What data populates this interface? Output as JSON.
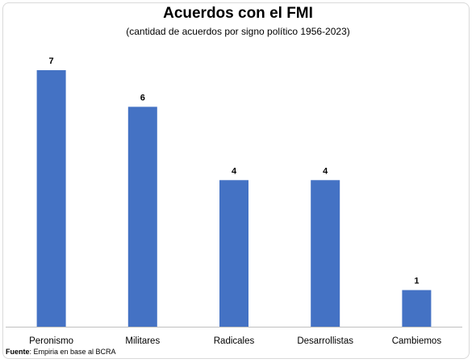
{
  "chart_data": {
    "type": "bar",
    "title": "Acuerdos con el FMI",
    "subtitle": "(cantidad de acuerdos por signo político 1956-2023)",
    "categories": [
      "Peronismo",
      "Militares",
      "Radicales",
      "Desarrollistas",
      "Cambiemos"
    ],
    "values": [
      7,
      6,
      4,
      4,
      1
    ],
    "data_labels": [
      "7",
      "6",
      "4",
      "4",
      "1"
    ],
    "xlabel": "",
    "ylabel": "",
    "ylim": [
      0,
      7
    ],
    "grid": false,
    "legend": "none",
    "bar_color": "#4472c4"
  },
  "source": {
    "label": "Fuente",
    "text": ": Empiria en base al BCRA"
  }
}
